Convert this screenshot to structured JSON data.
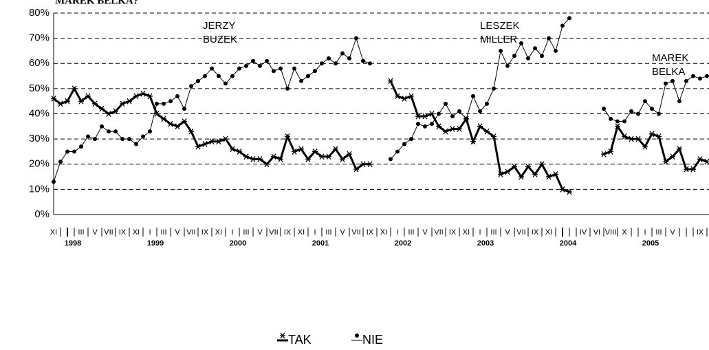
{
  "chart_data": {
    "type": "line",
    "heading": "MAREK BELKA?",
    "categories": [
      "XI",
      null,
      null,
      null,
      "III",
      null,
      "V",
      null,
      "VII",
      null,
      "IX",
      null,
      "XI",
      null,
      "I",
      null,
      "III",
      null,
      "V",
      null,
      "VII",
      null,
      "IX",
      null,
      "XI",
      null,
      "I",
      null,
      "III",
      null,
      "V",
      null,
      "VII",
      null,
      "IX",
      null,
      "XI",
      null,
      "I",
      null,
      "III",
      null,
      "V",
      null,
      "VII",
      null,
      "IX",
      null,
      "XI",
      null,
      "I",
      null,
      "III",
      null,
      "V",
      null,
      "VII",
      null,
      "IX",
      null,
      "XI",
      null,
      "I",
      null,
      "III",
      null,
      "V",
      null,
      "VII",
      null,
      "IX",
      null,
      "XI",
      null,
      null,
      null,
      null,
      "IV",
      null,
      "VI",
      null,
      "VIII",
      null,
      "X",
      null,
      null,
      "I",
      null,
      "III",
      null,
      "V",
      null,
      null,
      null,
      "IX",
      null
    ],
    "years": [
      "1998",
      "1999",
      "2000",
      "2001",
      "2002",
      "2003",
      "2004",
      "2005"
    ],
    "annotations": [
      [
        "JERZY",
        "BUZEK"
      ],
      [
        "LESZEK",
        "MILLER"
      ],
      [
        "MAREK",
        "BELKA"
      ]
    ],
    "ylim": [
      0,
      80
    ],
    "yticks": [
      {
        "value": 0,
        "label": "0%"
      },
      {
        "value": 10,
        "label": "10%"
      },
      {
        "value": 20,
        "label": "20%"
      },
      {
        "value": 30,
        "label": "30%"
      },
      {
        "value": 40,
        "label": "40%"
      },
      {
        "value": 50,
        "label": "50%"
      },
      {
        "value": 60,
        "label": "60%"
      },
      {
        "value": 70,
        "label": "70%"
      },
      {
        "value": 80,
        "label": "80%"
      }
    ],
    "grid": true,
    "series": [
      {
        "name": "TAK",
        "color": "#000000",
        "marker": "star",
        "values": [
          46,
          44,
          45,
          50,
          45,
          47,
          44,
          42,
          40,
          41,
          44,
          45,
          47,
          48,
          47,
          40,
          38,
          36,
          35,
          37,
          33,
          27,
          28,
          29,
          29,
          30,
          26,
          25,
          23,
          22,
          22,
          20,
          23,
          22,
          31,
          25,
          26,
          22,
          25,
          23,
          23,
          26,
          22,
          24,
          18,
          20,
          20,
          null,
          null,
          53,
          47,
          46,
          47,
          39,
          39,
          40,
          35,
          33,
          34,
          34,
          38,
          29,
          35,
          33,
          31,
          16,
          17,
          19,
          15,
          19,
          16,
          20,
          15,
          16,
          10,
          9,
          null,
          null,
          null,
          null,
          24,
          25,
          35,
          31,
          30,
          30,
          27,
          32,
          31,
          21,
          23,
          26,
          18,
          18,
          22,
          21
        ]
      },
      {
        "name": "NIE",
        "color": "#000000",
        "marker": "dot",
        "values": [
          13,
          21,
          25,
          25,
          27,
          31,
          30,
          35,
          33,
          33,
          30,
          30,
          28,
          31,
          33,
          44,
          44,
          45,
          47,
          42,
          51,
          53,
          55,
          58,
          55,
          52,
          55,
          58,
          59,
          61,
          59,
          61,
          57,
          58,
          50,
          58,
          53,
          55,
          57,
          60,
          62,
          60,
          64,
          62,
          70,
          61,
          60,
          null,
          null,
          22,
          25,
          28,
          30,
          36,
          35,
          36,
          40,
          44,
          39,
          41,
          38,
          47,
          41,
          44,
          50,
          65,
          59,
          63,
          68,
          62,
          66,
          63,
          70,
          65,
          75,
          78,
          null,
          null,
          null,
          null,
          42,
          38,
          37,
          37,
          41,
          40,
          45,
          42,
          40,
          52,
          53,
          45,
          53,
          55,
          54,
          55
        ]
      }
    ]
  }
}
